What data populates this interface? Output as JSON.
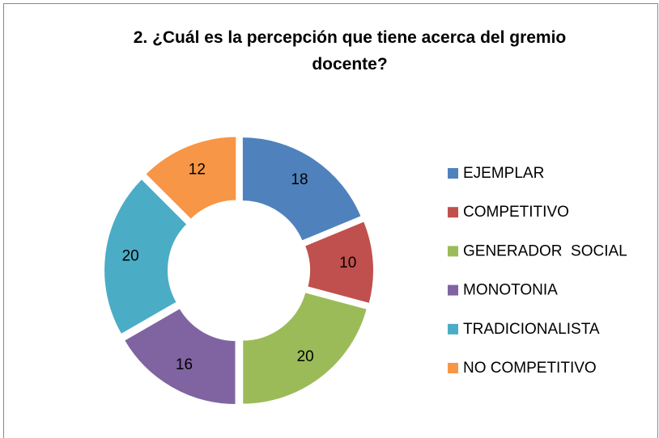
{
  "chart_data": {
    "type": "donut",
    "title": "2. ¿Cuál es la percepción que tiene acerca del gremio docente?",
    "categories": [
      "EJEMPLAR",
      "COMPETITIVO",
      "GENERADOR  SOCIAL",
      "MONOTONIA",
      "TRADICIONALISTA",
      "NO COMPETITIVO"
    ],
    "values": [
      18,
      10,
      20,
      16,
      20,
      12
    ],
    "colors": [
      "#4F81BD",
      "#C0504D",
      "#9BBB59",
      "#8064A2",
      "#4BACC6",
      "#F79646"
    ],
    "legend": "right"
  }
}
